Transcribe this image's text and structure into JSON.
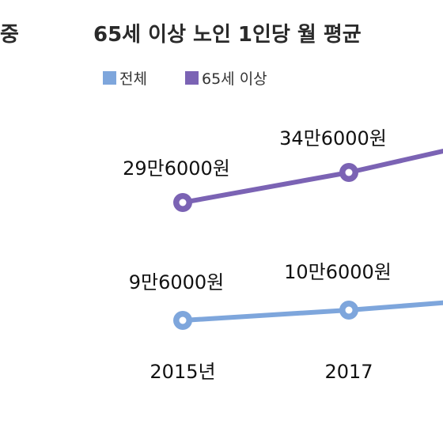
{
  "header": {
    "left_title_fragment": "중",
    "title": "65세 이상 노인 1인당 월 평균"
  },
  "chart_data": {
    "type": "line",
    "title": "65세 이상 노인 1인당 월 평균",
    "x": [
      "2015년",
      "2017"
    ],
    "series": [
      {
        "name": "전체",
        "values": [
          96000,
          106000
        ],
        "labels": [
          "9만6000원",
          "10만6000원"
        ],
        "color": "#7ea6dc"
      },
      {
        "name": "65세 이상",
        "values": [
          296000,
          346000
        ],
        "labels": [
          "29만6000원",
          "34만6000원"
        ],
        "color": "#7b63b4"
      }
    ],
    "legend": {
      "placement": "top-left",
      "swatch": "square"
    },
    "grid": false,
    "continues_beyond": "right"
  }
}
